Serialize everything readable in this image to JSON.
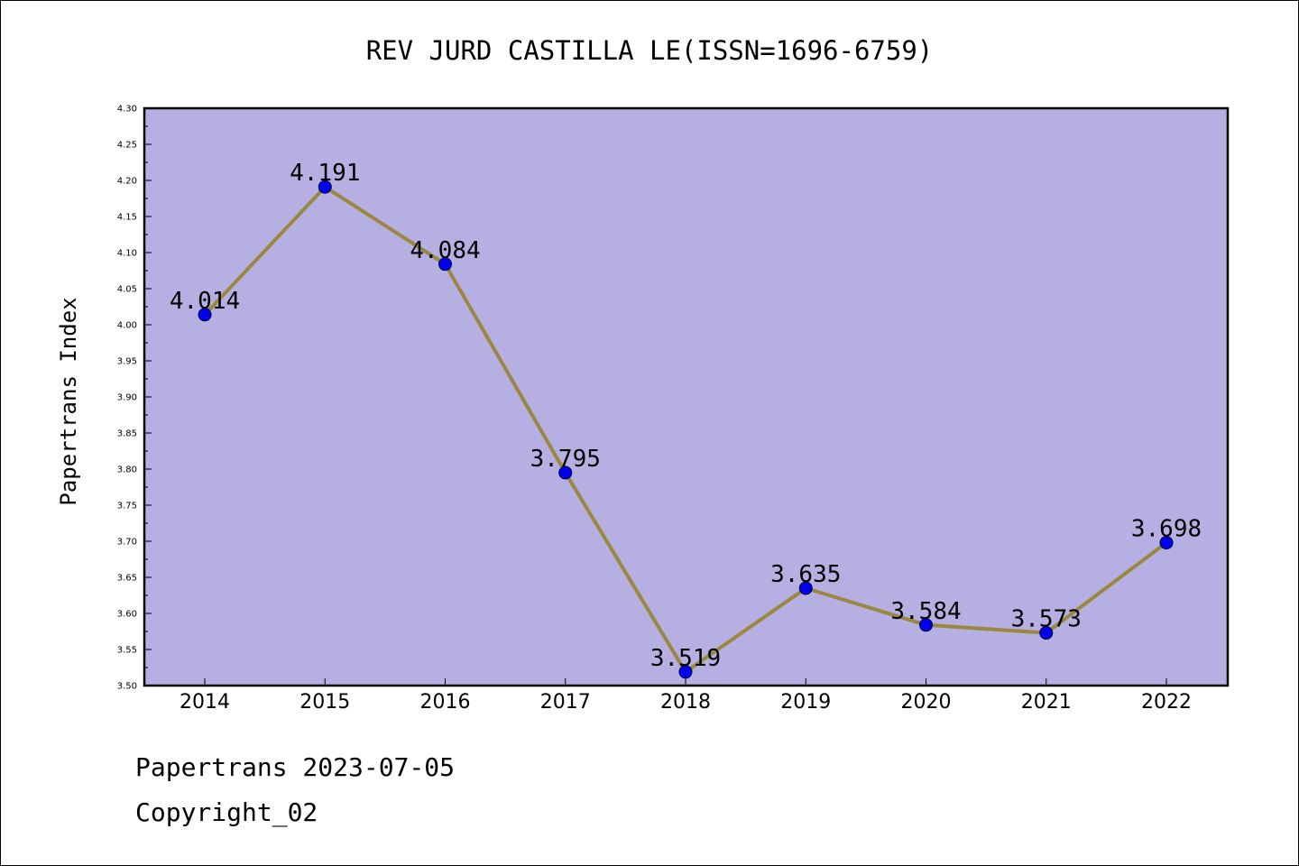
{
  "chart_data": {
    "type": "line",
    "title": "REV JURD CASTILLA LE(ISSN=1696-6759)",
    "ylabel": "Papertrans Index",
    "xlabel": "",
    "categories": [
      "2014",
      "2015",
      "2016",
      "2017",
      "2018",
      "2019",
      "2020",
      "2021",
      "2022"
    ],
    "values": [
      4.014,
      4.191,
      4.084,
      3.795,
      3.519,
      3.635,
      3.584,
      3.573,
      3.698
    ],
    "data_labels": [
      "4.014",
      "4.191",
      "4.084",
      "3.795",
      "3.519",
      "3.635",
      "3.584",
      "3.573",
      "3.698"
    ],
    "ylim": [
      3.5,
      4.3
    ],
    "y_ticks": [
      "3.50",
      "3.55",
      "3.60",
      "3.65",
      "3.70",
      "3.75",
      "3.80",
      "3.85",
      "3.90",
      "3.95",
      "4.00",
      "4.05",
      "4.10",
      "4.15",
      "4.20",
      "4.25",
      "4.30"
    ],
    "grid": false,
    "legend": "none",
    "colors": {
      "plot_background": "#b5afe2",
      "line": "#9b8840",
      "marker": "#0000ee",
      "axes": "#000000"
    }
  },
  "footer": {
    "date_line": "Papertrans 2023-07-05",
    "copyright": "Copyright_02"
  }
}
